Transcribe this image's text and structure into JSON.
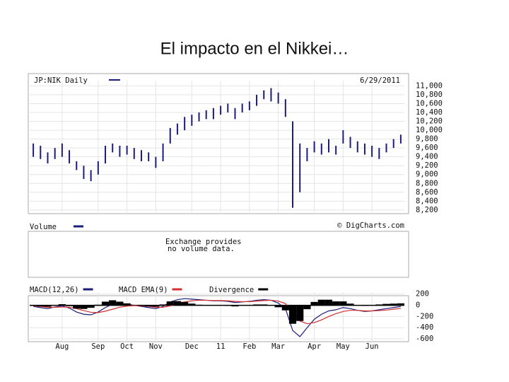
{
  "title": "El impacto en el Nikkei…",
  "chart_data": [
    {
      "type": "hilo",
      "title": "JP:NIK Daily",
      "date": "6/29/2011",
      "color": "#1c1c7a",
      "high": [
        9700,
        9650,
        9500,
        9600,
        9700,
        9550,
        9300,
        9200,
        9100,
        9300,
        9650,
        9700,
        9650,
        9650,
        9600,
        9550,
        9500,
        9400,
        9700,
        10050,
        10150,
        10300,
        10350,
        10400,
        10450,
        10500,
        10550,
        10600,
        10500,
        10600,
        10650,
        10800,
        10900,
        10950,
        10850,
        10700,
        10200,
        9700,
        9600,
        9750,
        9700,
        9800,
        9650,
        10000,
        9850,
        9750,
        9700,
        9650,
        9600,
        9700,
        9800,
        9900
      ],
      "low": [
        9400,
        9350,
        9250,
        9350,
        9400,
        9250,
        9100,
        8900,
        8850,
        9000,
        9250,
        9500,
        9400,
        9450,
        9350,
        9300,
        9300,
        9150,
        9300,
        9700,
        9900,
        10000,
        10100,
        10200,
        10250,
        10250,
        10350,
        10400,
        10250,
        10400,
        10450,
        10550,
        10700,
        10650,
        10600,
        10300,
        8250,
        8600,
        9300,
        9500,
        9450,
        9500,
        9450,
        9700,
        9600,
        9500,
        9450,
        9400,
        9350,
        9500,
        9600,
        9700
      ],
      "ylim": [
        8150,
        11150
      ],
      "yticks": [
        {
          "value": 11000,
          "label": "11,000"
        },
        {
          "value": 10800,
          "label": "10,800"
        },
        {
          "value": 10600,
          "label": "10,600"
        },
        {
          "value": 10400,
          "label": "10,400"
        },
        {
          "value": 10200,
          "label": "10,200"
        },
        {
          "value": 10000,
          "label": "10,000"
        },
        {
          "value": 9800,
          "label": "9,800"
        },
        {
          "value": 9600,
          "label": "9,600"
        },
        {
          "value": 9400,
          "label": "9,400"
        },
        {
          "value": 9200,
          "label": "9,200"
        },
        {
          "value": 9000,
          "label": "9,000"
        },
        {
          "value": 8800,
          "label": "8,800"
        },
        {
          "value": 8600,
          "label": "8,600"
        },
        {
          "value": 8400,
          "label": "8,400"
        },
        {
          "value": 8200,
          "label": "8,200"
        }
      ],
      "grid": true
    },
    {
      "type": "empty",
      "series": [
        {
          "name": "Volume",
          "color": "#1c1c7a"
        }
      ],
      "credit": "© DigCharts.com",
      "annotation": [
        "Exchange provides",
        "no volume data."
      ]
    },
    {
      "type": "macd",
      "categories": [
        null,
        null,
        null,
        null,
        "Aug",
        null,
        null,
        null,
        null,
        "Sep",
        null,
        null,
        null,
        "Oct",
        null,
        null,
        null,
        "Nov",
        null,
        null,
        null,
        null,
        "Dec",
        null,
        null,
        null,
        "11",
        null,
        null,
        null,
        "Feb",
        null,
        null,
        null,
        "Mar",
        null,
        null,
        null,
        null,
        "Apr",
        null,
        null,
        null,
        "May",
        null,
        null,
        null,
        "Jun",
        null,
        null,
        null,
        null
      ],
      "series": [
        {
          "name": "MACD(12,26)",
          "color": "#1c1c7a",
          "style": "line",
          "values": [
            -20,
            -40,
            -60,
            -30,
            -10,
            -50,
            -120,
            -160,
            -170,
            -120,
            -40,
            20,
            30,
            20,
            0,
            -20,
            -40,
            -60,
            -20,
            60,
            100,
            120,
            110,
            100,
            90,
            80,
            80,
            70,
            50,
            60,
            70,
            90,
            100,
            90,
            40,
            -60,
            -450,
            -560,
            -400,
            -250,
            -160,
            -100,
            -80,
            -40,
            -60,
            -90,
            -110,
            -100,
            -80,
            -60,
            -40,
            -20
          ]
        },
        {
          "name": "MACD EMA(9)",
          "color": "#d32f2f",
          "style": "line",
          "values": [
            -10,
            -20,
            -35,
            -35,
            -30,
            -35,
            -60,
            -95,
            -125,
            -130,
            -105,
            -70,
            -35,
            -15,
            -5,
            -10,
            -20,
            -35,
            -35,
            -10,
            25,
            60,
            80,
            90,
            90,
            85,
            85,
            80,
            70,
            65,
            65,
            75,
            85,
            90,
            75,
            30,
            -120,
            -280,
            -330,
            -310,
            -260,
            -200,
            -150,
            -110,
            -90,
            -90,
            -100,
            -100,
            -95,
            -85,
            -70,
            -55
          ]
        },
        {
          "name": "Divergence",
          "color": "#000000",
          "style": "bar",
          "values": [
            -10,
            -20,
            -25,
            5,
            20,
            -15,
            -60,
            -65,
            -45,
            10,
            65,
            90,
            65,
            35,
            5,
            -10,
            -20,
            -25,
            15,
            70,
            75,
            60,
            30,
            10,
            0,
            -5,
            -5,
            -10,
            -20,
            -5,
            5,
            15,
            15,
            0,
            -35,
            -90,
            -330,
            -280,
            -70,
            60,
            100,
            100,
            70,
            70,
            30,
            0,
            -10,
            0,
            15,
            25,
            30,
            35
          ]
        }
      ],
      "ylim": [
        -650,
        260
      ],
      "yticks": [
        200,
        0,
        -200,
        -400,
        -600
      ],
      "grid": true
    }
  ]
}
